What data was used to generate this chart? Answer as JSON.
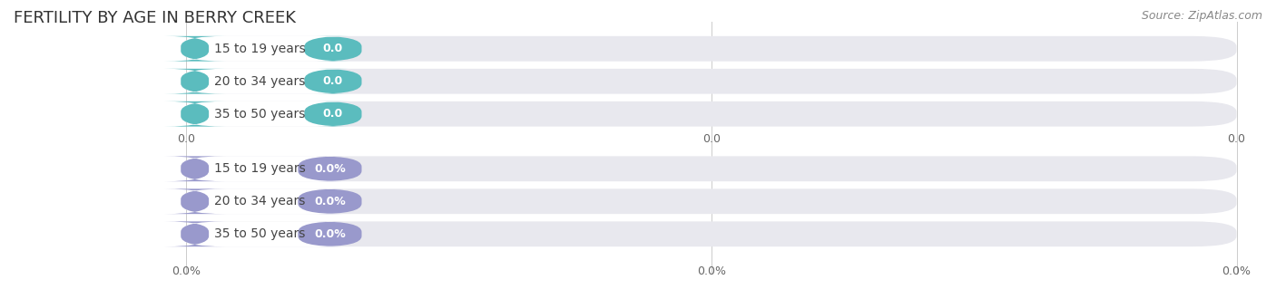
{
  "title": "FERTILITY BY AGE IN BERRY CREEK",
  "source": "Source: ZipAtlas.com",
  "top_section": {
    "categories": [
      "15 to 19 years",
      "20 to 34 years",
      "35 to 50 years"
    ],
    "values": [
      0.0,
      0.0,
      0.0
    ],
    "value_labels": [
      "0.0",
      "0.0",
      "0.0"
    ],
    "bar_bg_color": "#e8e8ee",
    "bar_fill_color": "#5bbcbe",
    "label_color": "#444444",
    "value_label_color": "#ffffff",
    "axis_tick_labels": [
      "0.0",
      "0.0",
      "0.0"
    ]
  },
  "bottom_section": {
    "categories": [
      "15 to 19 years",
      "20 to 34 years",
      "35 to 50 years"
    ],
    "values": [
      0.0,
      0.0,
      0.0
    ],
    "value_labels": [
      "0.0%",
      "0.0%",
      "0.0%"
    ],
    "bar_bg_color": "#e8e8ee",
    "bar_fill_color": "#9999cc",
    "label_color": "#444444",
    "value_label_color": "#ffffff",
    "axis_tick_labels": [
      "0.0%",
      "0.0%",
      "0.0%"
    ]
  },
  "background_color": "#ffffff",
  "title_fontsize": 13,
  "source_fontsize": 9,
  "label_fontsize": 10,
  "value_fontsize": 9,
  "axis_fontsize": 9
}
